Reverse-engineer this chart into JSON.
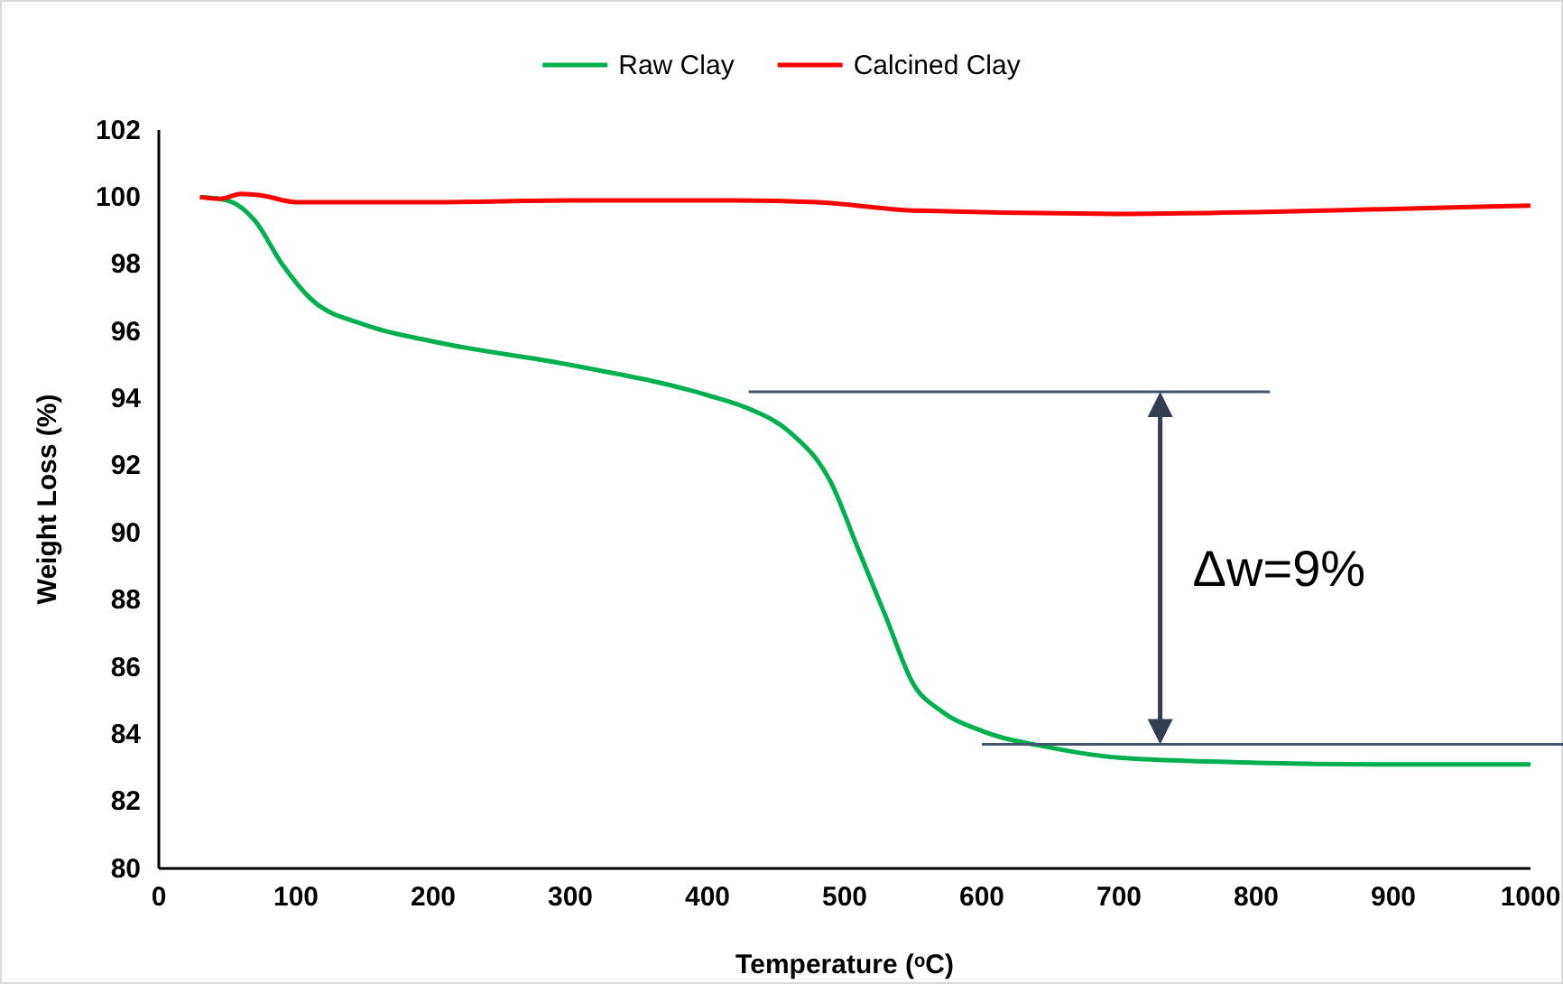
{
  "chart_data": {
    "type": "line",
    "xlabel": "Temperature (ᵒC)",
    "ylabel": "Weight Loss (%)",
    "xlim": [
      0,
      1000
    ],
    "xticks": [
      0,
      100,
      200,
      300,
      400,
      500,
      600,
      700,
      800,
      900,
      1000
    ],
    "ylim": [
      80,
      102
    ],
    "yticks": [
      80,
      82,
      84,
      86,
      88,
      90,
      92,
      94,
      96,
      98,
      100,
      102
    ],
    "grid": false,
    "legend": "top",
    "line_style": "solid",
    "marker": "none",
    "series": [
      {
        "name": "Raw Clay",
        "color": "#00b050",
        "x": [
          30,
          50,
          70,
          90,
          110,
          150,
          200,
          300,
          400,
          430,
          460,
          490,
          510,
          530,
          550,
          570,
          600,
          650,
          700,
          800,
          900,
          1000
        ],
        "values": [
          100,
          99.9,
          99.3,
          98,
          97,
          96.2,
          95.7,
          95,
          94.1,
          93.7,
          93,
          91.5,
          89.5,
          87.5,
          85.5,
          84.7,
          84.1,
          83.6,
          83.3,
          83.15,
          83.1,
          83.1
        ]
      },
      {
        "name": "Calcined Clay",
        "color": "#ff0000",
        "x": [
          30,
          45,
          60,
          75,
          100,
          200,
          300,
          420,
          480,
          550,
          700,
          800,
          900,
          1000
        ],
        "values": [
          100,
          99.95,
          100.1,
          100.05,
          99.85,
          99.85,
          99.9,
          99.9,
          99.85,
          99.6,
          99.5,
          99.55,
          99.65,
          99.75
        ]
      }
    ],
    "ref_lines": [
      {
        "axis": "y",
        "value": 94.2,
        "color": "#44546a"
      },
      {
        "axis": "y",
        "value": 83.7,
        "color": "#44546a"
      }
    ],
    "annotations": [
      "Δw=9%"
    ]
  }
}
